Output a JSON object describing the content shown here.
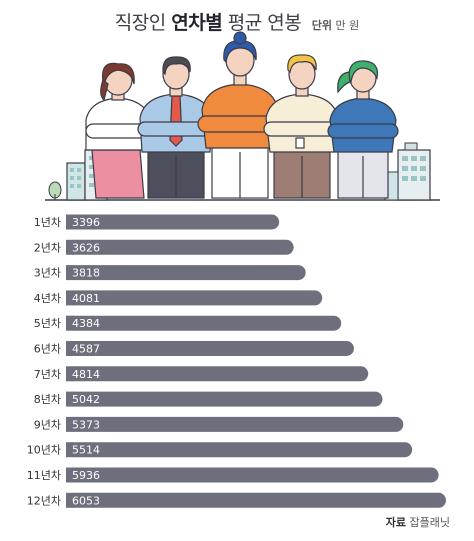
{
  "header": {
    "title_part1": "직장인",
    "title_bold": "연차별",
    "title_part2": "평균 연봉",
    "unit_label": "단위",
    "unit_value": "만 원"
  },
  "illustration": {
    "figures": [
      "woman-red-skirt",
      "man-blue-shirt-tie",
      "woman-orange-top",
      "man-cream-sweater",
      "woman-green-hair"
    ],
    "buildings": [
      "left-office-building",
      "right-office-building"
    ]
  },
  "chart_data": {
    "type": "bar",
    "orientation": "horizontal",
    "categories": [
      "1년차",
      "2년차",
      "3년차",
      "4년차",
      "5년차",
      "6년차",
      "7년차",
      "8년차",
      "9년차",
      "10년차",
      "11년차",
      "12년차"
    ],
    "values": [
      3396,
      3626,
      3818,
      4081,
      4384,
      4587,
      4814,
      5042,
      5373,
      5514,
      5936,
      6053
    ],
    "xlim": [
      0,
      6053
    ],
    "bar_color": "#6e6f7c",
    "value_label_color": "#ffffff",
    "grid": false
  },
  "source": {
    "label": "자료",
    "value": "잡플래닛"
  }
}
